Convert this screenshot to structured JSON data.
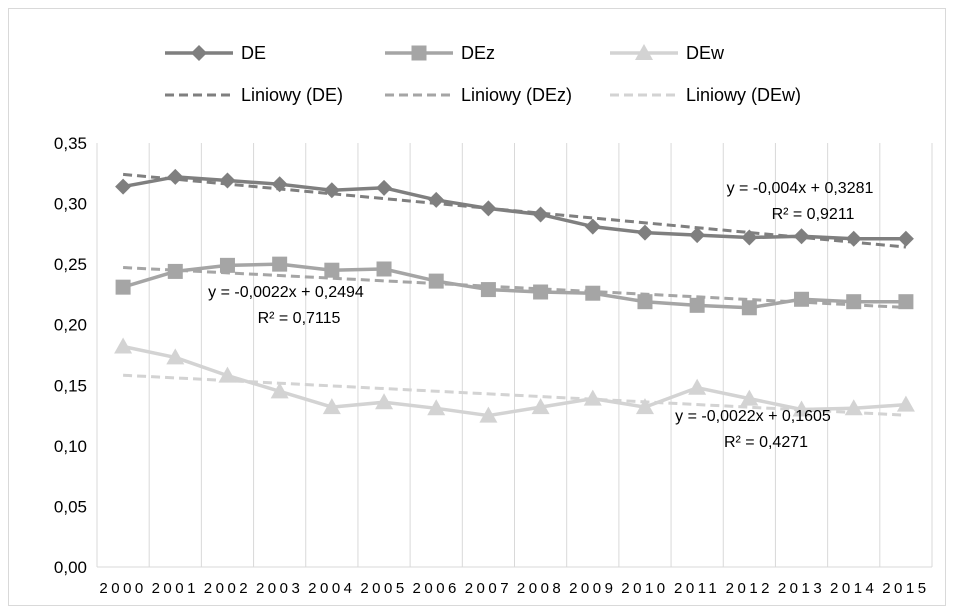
{
  "colors": {
    "DE": "#7f7f7f",
    "DEz": "#a5a5a5",
    "DEw": "#d3d3d3",
    "gridline": "#d9d9d9",
    "frame": "#d9d9d9",
    "text": "#000000"
  },
  "chart_data": {
    "type": "line",
    "x": [
      "2000",
      "2001",
      "2002",
      "2003",
      "2004",
      "2005",
      "2006",
      "2007",
      "2008",
      "2009",
      "2010",
      "2011",
      "2012",
      "2013",
      "2014",
      "2015"
    ],
    "ylim": [
      0,
      0.35
    ],
    "yticks": [
      "0,00",
      "0,05",
      "0,10",
      "0,15",
      "0,20",
      "0,25",
      "0,30",
      "0,35"
    ],
    "grid": "vertical lines at category boundaries",
    "legend_position": "top",
    "series": [
      {
        "name": "DE",
        "marker": "diamond",
        "color": "#7f7f7f",
        "values": [
          0.314,
          0.322,
          0.319,
          0.316,
          0.311,
          0.313,
          0.303,
          0.296,
          0.291,
          0.281,
          0.276,
          0.274,
          0.272,
          0.273,
          0.271,
          0.271
        ]
      },
      {
        "name": "DEz",
        "marker": "square",
        "color": "#a5a5a5",
        "values": [
          0.231,
          0.244,
          0.249,
          0.25,
          0.245,
          0.246,
          0.236,
          0.229,
          0.227,
          0.226,
          0.219,
          0.216,
          0.214,
          0.221,
          0.219,
          0.219
        ]
      },
      {
        "name": "DEw",
        "marker": "triangle",
        "color": "#d3d3d3",
        "values": [
          0.182,
          0.173,
          0.158,
          0.145,
          0.132,
          0.136,
          0.131,
          0.125,
          0.132,
          0.139,
          0.132,
          0.148,
          0.139,
          0.13,
          0.131,
          0.134
        ]
      }
    ],
    "trendlines": [
      {
        "name": "Liniowy (DE)",
        "color": "#7f7f7f",
        "slope": -0.004,
        "intercept": 0.3281,
        "equation": "y = -0,004x + 0,3281",
        "r2": "R² = 0,9211"
      },
      {
        "name": "Liniowy (DEz)",
        "color": "#a5a5a5",
        "slope": -0.0022,
        "intercept": 0.2494,
        "equation": "y = -0,0022x + 0,2494",
        "r2": "R² = 0,7115"
      },
      {
        "name": "Liniowy (DEw)",
        "color": "#d3d3d3",
        "slope": -0.0022,
        "intercept": 0.1605,
        "equation": "y = -0,0022x + 0,1605",
        "r2": "R² = 0,4271"
      }
    ]
  }
}
